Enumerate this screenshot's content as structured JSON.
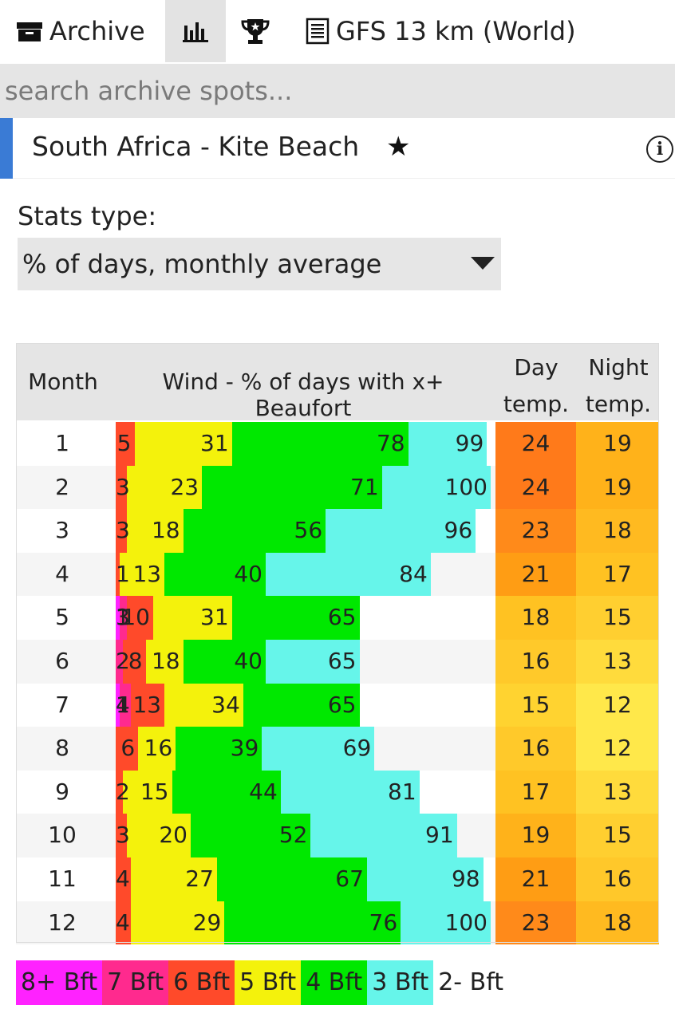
{
  "topbar": {
    "archive_label": "Archive",
    "archive_icon": "archive-box-icon",
    "stats_icon": "bar-chart-icon",
    "trophy_icon": "trophy-icon",
    "model_icon": "document-list-icon",
    "model_label": "GFS 13 km (World)"
  },
  "search": {
    "placeholder": "search archive spots..."
  },
  "spot": {
    "name": "South Africa - Kite Beach",
    "favorite_icon": "★",
    "info_icon": "i"
  },
  "stats": {
    "label": "Stats type:",
    "selected": "% of days, monthly average"
  },
  "table": {
    "headers": {
      "month": "Month",
      "wind": "Wind - % of days with x+ Beaufort",
      "day_line1": "Day",
      "day_line2": "temp.",
      "night_line1": "Night",
      "night_line2": "temp."
    },
    "rows": [
      {
        "month": "1",
        "b8": "",
        "b7": "",
        "b6": "5",
        "b5": "31",
        "b4": "78",
        "b3": "99",
        "day": "24",
        "night": "19"
      },
      {
        "month": "2",
        "b8": "",
        "b7": "",
        "b6": "3",
        "b5": "23",
        "b4": "71",
        "b3": "100",
        "day": "24",
        "night": "19"
      },
      {
        "month": "3",
        "b8": "",
        "b7": "",
        "b6": "3",
        "b5": "18",
        "b4": "56",
        "b3": "96",
        "day": "23",
        "night": "18"
      },
      {
        "month": "4",
        "b8": "",
        "b7": "",
        "b6": "1",
        "b5": "13",
        "b4": "40",
        "b3": "84",
        "day": "21",
        "night": "17"
      },
      {
        "month": "5",
        "b8": "1",
        "b7": "3",
        "b6": "10",
        "b5": "31",
        "b4": "65",
        "b3": "",
        "day": "18",
        "night": "15"
      },
      {
        "month": "6",
        "b8": "",
        "b7": "2",
        "b6": "8",
        "b5": "18",
        "b4": "40",
        "b3": "65",
        "day": "16",
        "night": "13"
      },
      {
        "month": "7",
        "b8": "1",
        "b7": "4",
        "b6": "13",
        "b5": "34",
        "b4": "65",
        "b3": "",
        "day": "15",
        "night": "12"
      },
      {
        "month": "8",
        "b8": "",
        "b7": "",
        "b6": "6",
        "b5": "16",
        "b4": "39",
        "b3": "69",
        "day": "16",
        "night": "12"
      },
      {
        "month": "9",
        "b8": "",
        "b7": "",
        "b6": "2",
        "b5": "15",
        "b4": "44",
        "b3": "81",
        "day": "17",
        "night": "13"
      },
      {
        "month": "10",
        "b8": "",
        "b7": "",
        "b6": "3",
        "b5": "20",
        "b4": "52",
        "b3": "91",
        "day": "19",
        "night": "15"
      },
      {
        "month": "11",
        "b8": "",
        "b7": "",
        "b6": "4",
        "b5": "27",
        "b4": "67",
        "b3": "98",
        "day": "21",
        "night": "16"
      },
      {
        "month": "12",
        "b8": "",
        "b7": "",
        "b6": "4",
        "b5": "29",
        "b4": "76",
        "b3": "100",
        "day": "23",
        "night": "18"
      }
    ]
  },
  "legend": [
    {
      "label": "8+ Bft",
      "color": "#ff22ff"
    },
    {
      "label": "7 Bft",
      "color": "#ff2a8e"
    },
    {
      "label": "6 Bft",
      "color": "#ff4a2a"
    },
    {
      "label": "5 Bft",
      "color": "#f4f20c"
    },
    {
      "label": "4 Bft",
      "color": "#00e800"
    },
    {
      "label": "3 Bft",
      "color": "#66f5ea"
    },
    {
      "label": "2- Bft",
      "color": "#ffffff"
    }
  ],
  "chart_data": {
    "type": "bar",
    "categories": [
      "1",
      "2",
      "3",
      "4",
      "5",
      "6",
      "7",
      "8",
      "9",
      "10",
      "11",
      "12"
    ],
    "xlabel": "Month",
    "ylabel": "Wind - % of days with x+ Beaufort",
    "ylim": [
      0,
      100
    ],
    "series": [
      {
        "name": "8+ Bft",
        "values": [
          0,
          0,
          0,
          0,
          1,
          0,
          1,
          0,
          0,
          0,
          0,
          0
        ]
      },
      {
        "name": "7 Bft",
        "values": [
          0,
          0,
          0,
          0,
          3,
          2,
          4,
          0,
          0,
          0,
          0,
          0
        ]
      },
      {
        "name": "6 Bft",
        "values": [
          5,
          3,
          3,
          1,
          10,
          8,
          13,
          6,
          2,
          3,
          4,
          4
        ]
      },
      {
        "name": "5 Bft",
        "values": [
          31,
          23,
          18,
          13,
          31,
          18,
          34,
          16,
          15,
          20,
          27,
          29
        ]
      },
      {
        "name": "4 Bft",
        "values": [
          78,
          71,
          56,
          40,
          65,
          40,
          65,
          39,
          44,
          52,
          67,
          76
        ]
      },
      {
        "name": "3 Bft",
        "values": [
          99,
          100,
          96,
          84,
          65,
          65,
          65,
          69,
          81,
          91,
          98,
          100
        ]
      }
    ],
    "day_temp": [
      24,
      24,
      23,
      21,
      18,
      16,
      15,
      16,
      17,
      19,
      21,
      23
    ],
    "night_temp": [
      19,
      19,
      18,
      17,
      15,
      13,
      12,
      12,
      13,
      15,
      16,
      18
    ]
  }
}
